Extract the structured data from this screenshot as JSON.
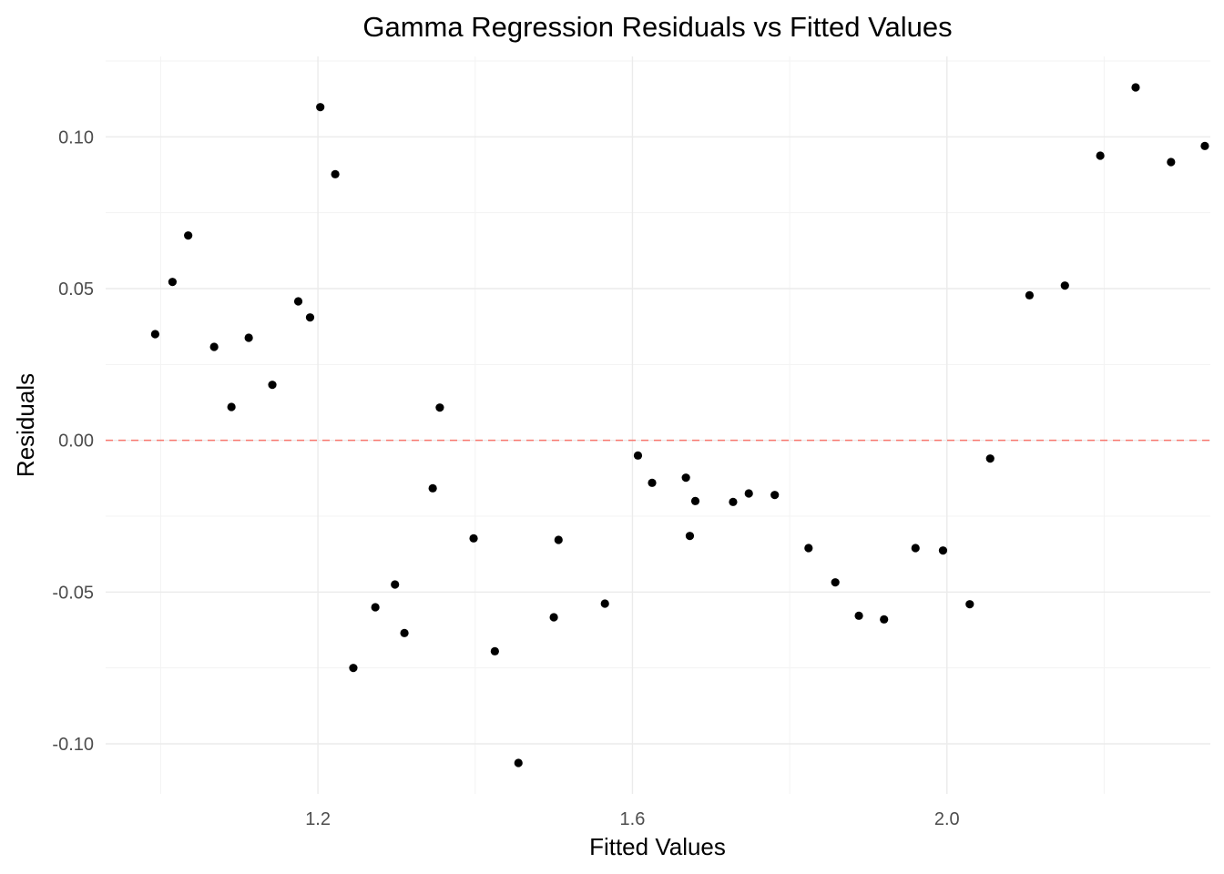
{
  "chart_data": {
    "type": "scatter",
    "title": "Gamma Regression Residuals vs Fitted Values",
    "xlabel": "Fitted Values",
    "ylabel": "Residuals",
    "xlim": [
      0.93,
      2.335
    ],
    "ylim": [
      -0.1165,
      0.1265
    ],
    "x_ticks": [
      1.2,
      1.6,
      2.0
    ],
    "x_tick_labels": [
      "1.2",
      "1.6",
      "2.0"
    ],
    "x_minor_ticks": [
      1.0,
      1.4,
      1.8,
      2.2
    ],
    "y_ticks": [
      -0.1,
      -0.05,
      0.0,
      0.05,
      0.1
    ],
    "y_tick_labels": [
      "-0.10",
      "-0.05",
      "0.00",
      "0.05",
      "0.10"
    ],
    "y_minor_ticks": [
      -0.075,
      -0.025,
      0.025,
      0.075,
      0.125
    ],
    "grid": true,
    "reference_line": {
      "y": 0,
      "style": "dashed",
      "color": "#f8766d"
    },
    "point_color": "#000000",
    "points": [
      {
        "x": 0.993,
        "y": 0.035
      },
      {
        "x": 1.015,
        "y": 0.0522
      },
      {
        "x": 1.035,
        "y": 0.0675
      },
      {
        "x": 1.068,
        "y": 0.0308
      },
      {
        "x": 1.09,
        "y": 0.011
      },
      {
        "x": 1.112,
        "y": 0.0338
      },
      {
        "x": 1.142,
        "y": 0.0183
      },
      {
        "x": 1.175,
        "y": 0.0458
      },
      {
        "x": 1.19,
        "y": 0.0405
      },
      {
        "x": 1.203,
        "y": 0.1098
      },
      {
        "x": 1.222,
        "y": 0.0877
      },
      {
        "x": 1.245,
        "y": -0.075
      },
      {
        "x": 1.273,
        "y": -0.055
      },
      {
        "x": 1.298,
        "y": -0.0475
      },
      {
        "x": 1.31,
        "y": -0.0635
      },
      {
        "x": 1.346,
        "y": -0.0158
      },
      {
        "x": 1.355,
        "y": 0.0108
      },
      {
        "x": 1.398,
        "y": -0.0323
      },
      {
        "x": 1.425,
        "y": -0.0695
      },
      {
        "x": 1.455,
        "y": -0.1063
      },
      {
        "x": 1.5,
        "y": -0.0583
      },
      {
        "x": 1.506,
        "y": -0.0328
      },
      {
        "x": 1.565,
        "y": -0.0538
      },
      {
        "x": 1.607,
        "y": -0.005
      },
      {
        "x": 1.625,
        "y": -0.014
      },
      {
        "x": 1.668,
        "y": -0.0123
      },
      {
        "x": 1.673,
        "y": -0.0315
      },
      {
        "x": 1.68,
        "y": -0.02
      },
      {
        "x": 1.728,
        "y": -0.0203
      },
      {
        "x": 1.748,
        "y": -0.0175
      },
      {
        "x": 1.781,
        "y": -0.018
      },
      {
        "x": 1.824,
        "y": -0.0355
      },
      {
        "x": 1.858,
        "y": -0.0468
      },
      {
        "x": 1.888,
        "y": -0.0578
      },
      {
        "x": 1.92,
        "y": -0.059
      },
      {
        "x": 1.96,
        "y": -0.0355
      },
      {
        "x": 1.995,
        "y": -0.0363
      },
      {
        "x": 2.029,
        "y": -0.054
      },
      {
        "x": 2.055,
        "y": -0.006
      },
      {
        "x": 2.105,
        "y": 0.0478
      },
      {
        "x": 2.15,
        "y": 0.051
      },
      {
        "x": 2.195,
        "y": 0.0938
      },
      {
        "x": 2.24,
        "y": 0.1163
      },
      {
        "x": 2.285,
        "y": 0.0917
      },
      {
        "x": 2.328,
        "y": 0.097
      }
    ]
  }
}
